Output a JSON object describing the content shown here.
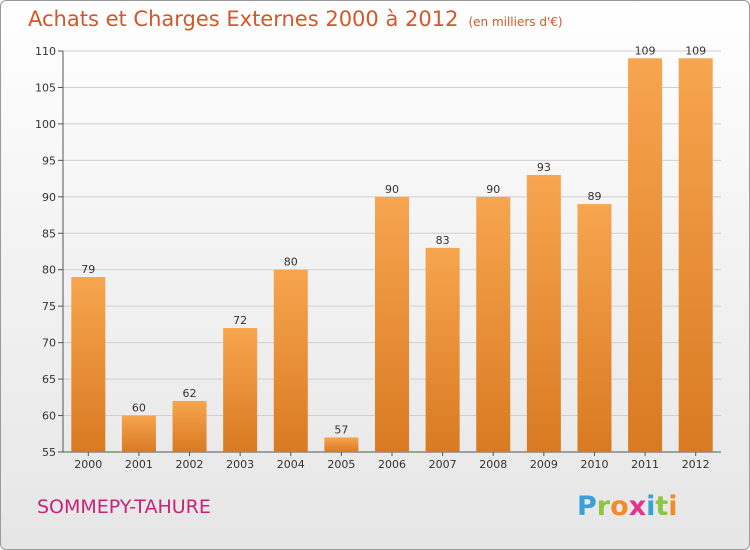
{
  "header": {
    "title": "Achats et Charges Externes 2000 à 2012",
    "subtitle": "(en milliers d'€)"
  },
  "footer": {
    "commune": "SOMMEPY-TAHURE",
    "logo_letters": [
      "P",
      "r",
      "o",
      "x",
      "i",
      "t",
      "i"
    ],
    "logo_colors": [
      "#3aa0d8",
      "#8dc63f",
      "#f28c28",
      "#e8318a",
      "#3aa0d8",
      "#8dc63f",
      "#f28c28"
    ]
  },
  "colors": {
    "bar_light": "#f7a54f",
    "bar_dark": "#d97a22",
    "grid": "#cfcfcf",
    "axis": "#555555",
    "title": "#d4572a",
    "commune": "#c8237a"
  },
  "chart_data": {
    "type": "bar",
    "title": "Achats et Charges Externes 2000 à 2012",
    "subtitle": "(en milliers d'€)",
    "categories": [
      "2000",
      "2001",
      "2002",
      "2003",
      "2004",
      "2005",
      "2006",
      "2007",
      "2008",
      "2009",
      "2010",
      "2011",
      "2012"
    ],
    "values": [
      79,
      60,
      62,
      72,
      80,
      57,
      90,
      83,
      90,
      93,
      89,
      109,
      109
    ],
    "xlabel": "",
    "ylabel": "",
    "ylim": [
      55,
      110
    ],
    "yticks": [
      55,
      60,
      65,
      70,
      75,
      80,
      85,
      90,
      95,
      100,
      105,
      110
    ],
    "grid": "horizontal"
  }
}
